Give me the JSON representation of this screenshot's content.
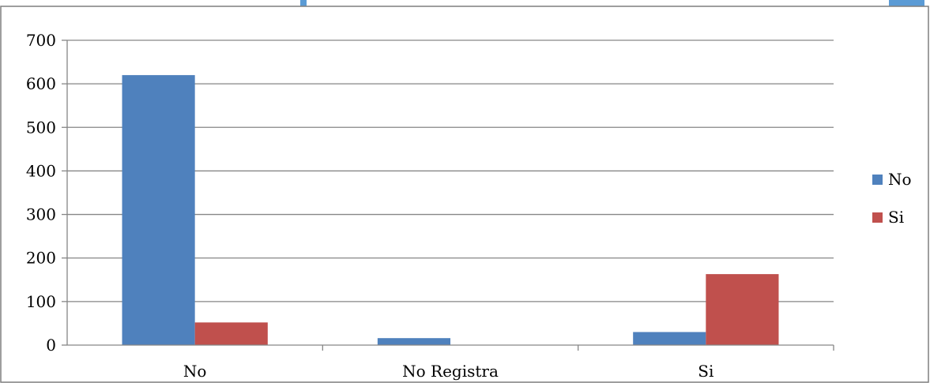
{
  "chart_data": {
    "type": "bar",
    "title": "",
    "xlabel": "",
    "ylabel": "",
    "categories": [
      "No",
      "No Registra",
      "Si"
    ],
    "series": [
      {
        "name": "No",
        "color": "#4f81bd",
        "values": [
          620,
          16,
          30
        ]
      },
      {
        "name": "Si",
        "color": "#c0504d",
        "values": [
          52,
          0,
          163
        ]
      }
    ],
    "ylim": [
      0,
      700
    ],
    "yticks": [
      "0",
      "100",
      "200",
      "300",
      "400",
      "500",
      "600",
      "700"
    ],
    "grid": true,
    "legend_position": "right"
  }
}
